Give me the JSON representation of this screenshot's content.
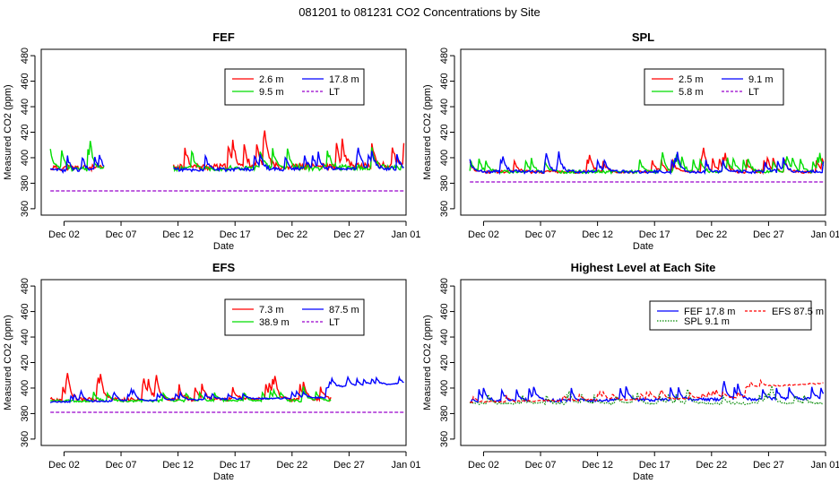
{
  "figure_title": "081201  to  081231 CO2 Concentrations by Site",
  "chart_data": [
    {
      "type": "line",
      "title": "FEF",
      "xlabel": "Date",
      "ylabel": "Measured CO2 (ppm)",
      "xlim": [
        -1,
        31
      ],
      "ylim": [
        355,
        485
      ],
      "y_ticks": [
        360,
        380,
        400,
        420,
        440,
        460,
        480
      ],
      "x_ticks": [
        {
          "day": 1,
          "label": "Dec 02"
        },
        {
          "day": 6,
          "label": "Dec 07"
        },
        {
          "day": 11,
          "label": "Dec 12"
        },
        {
          "day": 16,
          "label": "Dec 17"
        },
        {
          "day": 21,
          "label": "Dec 22"
        },
        {
          "day": 26,
          "label": "Dec 27"
        },
        {
          "day": 31,
          "label": "Jan 01"
        }
      ],
      "legend": {
        "placement": "top-right",
        "ncol": 2
      },
      "series": [
        {
          "name": "2.6 m",
          "color": "#ff0000",
          "style": "solid",
          "base": 392,
          "spike": 8,
          "trend": 0.05,
          "seed": 11,
          "gaps": [
            [
              4.5,
              10.5
            ]
          ]
        },
        {
          "name": "9.5 m",
          "color": "#00dd00",
          "style": "solid",
          "base": 391,
          "spike": 7,
          "trend": 0.05,
          "seed": 23,
          "gaps": [
            [
              4.5,
              10.5
            ]
          ]
        },
        {
          "name": "17.8 m",
          "color": "#0000ff",
          "style": "solid",
          "base": 390,
          "spike": 5,
          "trend": 0.05,
          "seed": 37,
          "gaps": [
            [
              4.5,
              10.5
            ]
          ]
        },
        {
          "name": "LT",
          "color": "#9900cc",
          "style": "dashed",
          "base": 374,
          "spike": 0,
          "trend": 0,
          "seed": 5,
          "gaps": []
        }
      ]
    },
    {
      "type": "line",
      "title": "SPL",
      "xlabel": "Date",
      "ylabel": "Measured CO2 (ppm)",
      "xlim": [
        -1,
        31
      ],
      "ylim": [
        355,
        485
      ],
      "y_ticks": [
        360,
        380,
        400,
        420,
        440,
        460,
        480
      ],
      "x_ticks": [
        {
          "day": 1,
          "label": "Dec 02"
        },
        {
          "day": 6,
          "label": "Dec 07"
        },
        {
          "day": 11,
          "label": "Dec 12"
        },
        {
          "day": 16,
          "label": "Dec 17"
        },
        {
          "day": 21,
          "label": "Dec 22"
        },
        {
          "day": 26,
          "label": "Dec 27"
        },
        {
          "day": 31,
          "label": "Jan 01"
        }
      ],
      "legend": {
        "placement": "top-right",
        "ncol": 2
      },
      "series": [
        {
          "name": "2.5 m",
          "color": "#ff0000",
          "style": "solid",
          "base": 389,
          "spike": 4,
          "trend": 0.0,
          "seed": 41,
          "gaps": []
        },
        {
          "name": "5.8 m",
          "color": "#00dd00",
          "style": "solid",
          "base": 389,
          "spike": 4,
          "trend": 0.0,
          "seed": 43,
          "gaps": []
        },
        {
          "name": "9.1 m",
          "color": "#0000ff",
          "style": "solid",
          "base": 389,
          "spike": 4,
          "trend": 0.0,
          "seed": 47,
          "gaps": []
        },
        {
          "name": "LT",
          "color": "#9900cc",
          "style": "dashed",
          "base": 381,
          "spike": 0,
          "trend": 0,
          "seed": 7,
          "gaps": []
        }
      ]
    },
    {
      "type": "line",
      "title": "EFS",
      "xlabel": "Date",
      "ylabel": "Measured CO2 (ppm)",
      "xlim": [
        -1,
        31
      ],
      "ylim": [
        355,
        485
      ],
      "y_ticks": [
        360,
        380,
        400,
        420,
        440,
        460,
        480
      ],
      "x_ticks": [
        {
          "day": 1,
          "label": "Dec 02"
        },
        {
          "day": 6,
          "label": "Dec 07"
        },
        {
          "day": 11,
          "label": "Dec 12"
        },
        {
          "day": 16,
          "label": "Dec 17"
        },
        {
          "day": 21,
          "label": "Dec 22"
        },
        {
          "day": 26,
          "label": "Dec 27"
        },
        {
          "day": 31,
          "label": "Jan 01"
        }
      ],
      "legend": {
        "placement": "top-right",
        "ncol": 2
      },
      "series": [
        {
          "name": "7.3 m",
          "color": "#ff0000",
          "style": "solid",
          "base": 391,
          "spike": 5,
          "trend": 0.0,
          "seed": 53,
          "gaps": [],
          "end": 24.5
        },
        {
          "name": "38.9 m",
          "color": "#00dd00",
          "style": "solid",
          "base": 390,
          "spike": 3,
          "trend": 0.0,
          "seed": 59,
          "gaps": [],
          "end": 24.5
        },
        {
          "name": "87.5 m",
          "color": "#0000ff",
          "style": "solid",
          "base": 389,
          "spike": 2,
          "trend": 0.3,
          "seed": 61,
          "gaps": []
        },
        {
          "name": "LT",
          "color": "#9900cc",
          "style": "dashed",
          "base": 381,
          "spike": 0,
          "trend": 0,
          "seed": 9,
          "gaps": []
        }
      ]
    },
    {
      "type": "line",
      "title": "Highest Level at Each Site",
      "xlabel": "Date",
      "ylabel": "Measured CO2 (ppm)",
      "xlim": [
        -1,
        31
      ],
      "ylim": [
        355,
        485
      ],
      "y_ticks": [
        360,
        380,
        400,
        420,
        440,
        460,
        480
      ],
      "x_ticks": [
        {
          "day": 1,
          "label": "Dec 02"
        },
        {
          "day": 6,
          "label": "Dec 07"
        },
        {
          "day": 11,
          "label": "Dec 12"
        },
        {
          "day": 16,
          "label": "Dec 17"
        },
        {
          "day": 21,
          "label": "Dec 22"
        },
        {
          "day": 26,
          "label": "Dec 27"
        },
        {
          "day": 31,
          "label": "Jan 01"
        }
      ],
      "legend": {
        "placement": "top-right",
        "ncol": 2
      },
      "series": [
        {
          "name": "FEF  17.8 m",
          "color": "#0000ff",
          "style": "solid",
          "base": 390,
          "spike": 4,
          "trend": 0.05,
          "seed": 71,
          "gaps": []
        },
        {
          "name": "SPL  9.1 m",
          "color": "#008800",
          "style": "dotted",
          "base": 388,
          "spike": 3,
          "trend": 0.0,
          "seed": 73,
          "gaps": []
        },
        {
          "name": "EFS  87.5 m",
          "color": "#ff0000",
          "style": "dashed",
          "base": 389,
          "spike": 2,
          "trend": 0.3,
          "seed": 79,
          "gaps": []
        }
      ]
    }
  ]
}
